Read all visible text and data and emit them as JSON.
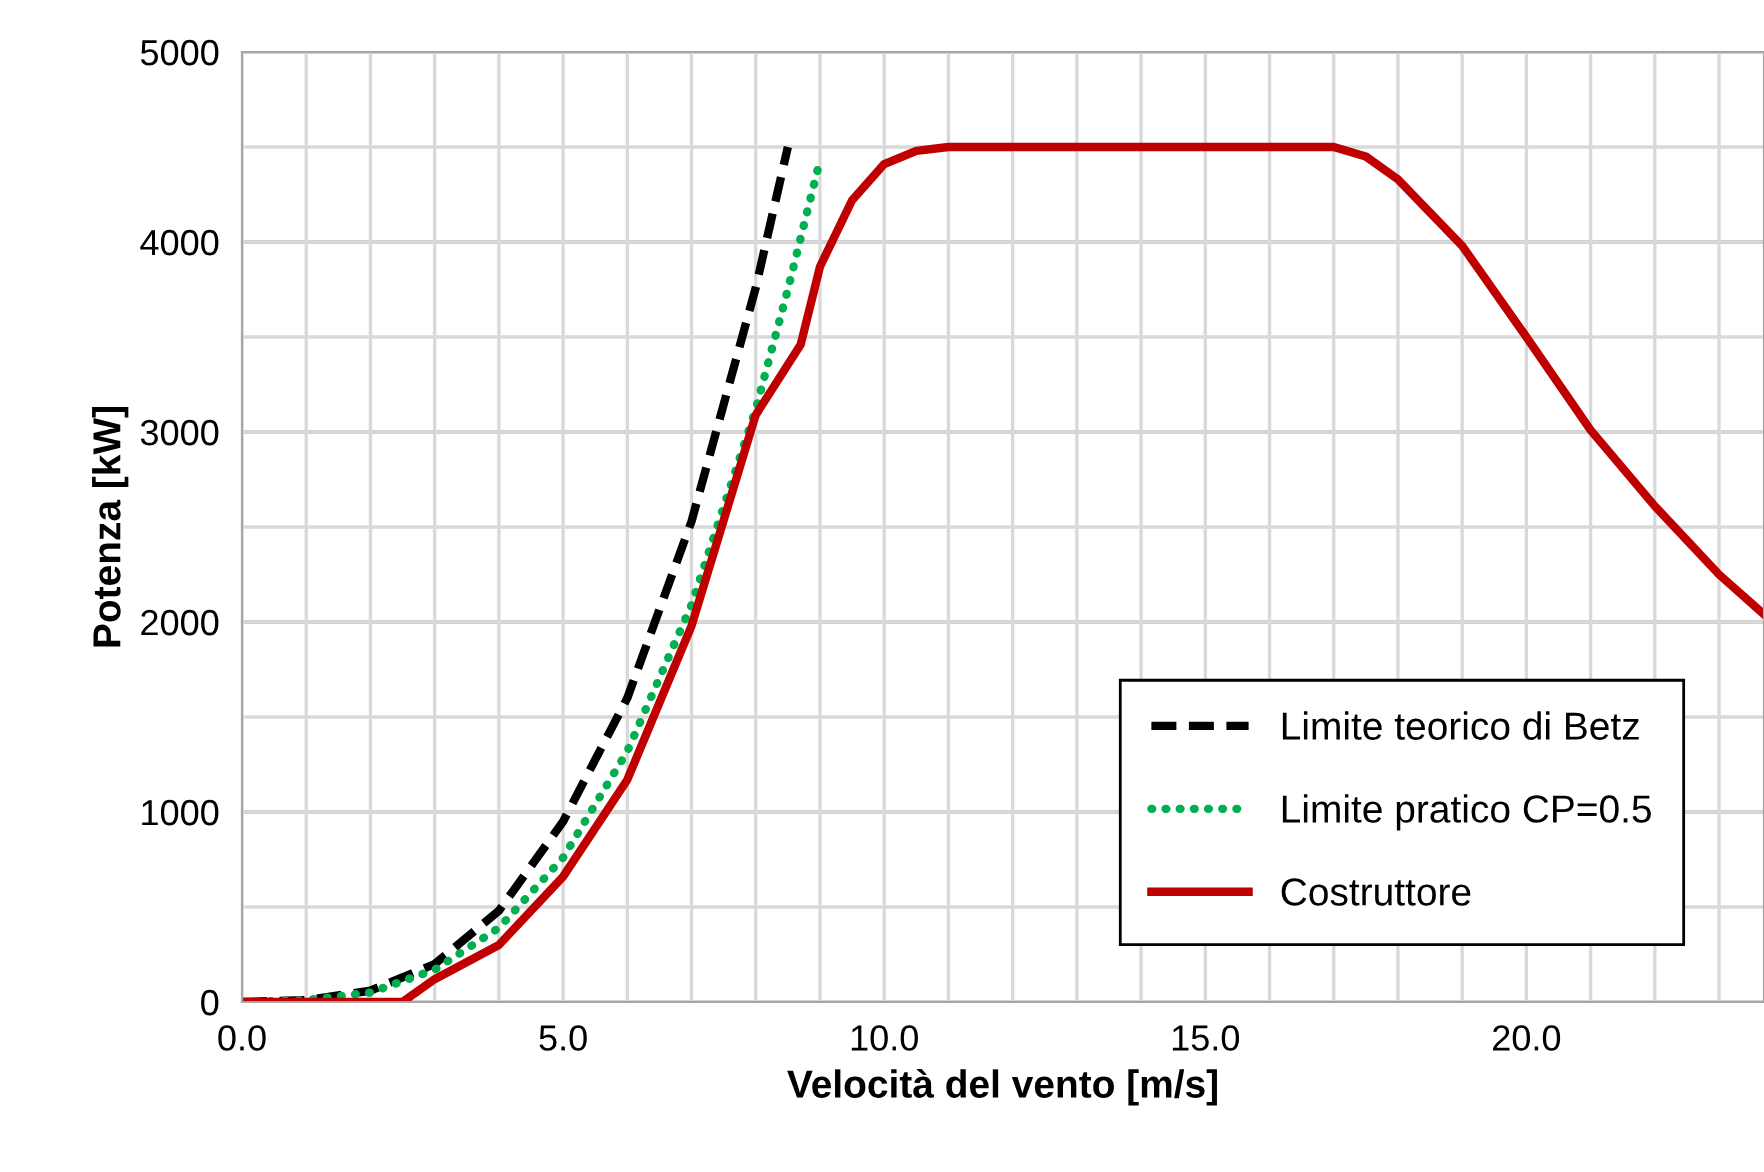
{
  "chart_data": {
    "type": "line",
    "xlabel": "Velocità del vento [m/s]",
    "ylabel": "Potenza [kW]",
    "xlim": [
      0,
      23.7
    ],
    "ylim": [
      0,
      5000
    ],
    "xticks": [
      {
        "value": 0,
        "label": "0.0"
      },
      {
        "value": 1,
        "label": null
      },
      {
        "value": 2,
        "label": null
      },
      {
        "value": 3,
        "label": null
      },
      {
        "value": 4,
        "label": null
      },
      {
        "value": 5,
        "label": "5.0"
      },
      {
        "value": 6,
        "label": null
      },
      {
        "value": 7,
        "label": null
      },
      {
        "value": 8,
        "label": null
      },
      {
        "value": 9,
        "label": null
      },
      {
        "value": 10,
        "label": "10.0"
      },
      {
        "value": 11,
        "label": null
      },
      {
        "value": 12,
        "label": null
      },
      {
        "value": 13,
        "label": null
      },
      {
        "value": 14,
        "label": null
      },
      {
        "value": 15,
        "label": "15.0"
      },
      {
        "value": 16,
        "label": null
      },
      {
        "value": 17,
        "label": null
      },
      {
        "value": 18,
        "label": null
      },
      {
        "value": 19,
        "label": null
      },
      {
        "value": 20,
        "label": "20.0"
      },
      {
        "value": 21,
        "label": null
      },
      {
        "value": 22,
        "label": null
      },
      {
        "value": 23,
        "label": null
      }
    ],
    "yticks": [
      0,
      {
        "value": 500,
        "label": null
      },
      1000,
      {
        "value": 1500,
        "label": null
      },
      2000,
      {
        "value": 2500,
        "label": null
      },
      3000,
      {
        "value": 3500,
        "label": null
      },
      4000,
      {
        "value": 4500,
        "label": null
      },
      5000
    ],
    "grid": true,
    "legend": "bottom right",
    "series": [
      {
        "name": "Limite teorico di Betz",
        "color": "#000000",
        "line_style": "dashed",
        "x": [
          0,
          1,
          2,
          3,
          4,
          5,
          6,
          7,
          8,
          8.5
        ],
        "values": [
          0,
          10,
          60,
          200,
          480,
          950,
          1600,
          2530,
          3760,
          4500
        ]
      },
      {
        "name": "Limite pratico CP=0.5",
        "color": "#00b050",
        "line_style": "dotted",
        "x": [
          0,
          1,
          2,
          3,
          4,
          5,
          6,
          7,
          8,
          8.5,
          9
        ],
        "values": [
          0,
          10,
          50,
          170,
          390,
          760,
          1320,
          2090,
          3120,
          3750,
          4430
        ]
      },
      {
        "name": "Costruttore",
        "color": "#c00000",
        "line_style": "solid",
        "x": [
          0,
          1,
          2,
          2.5,
          3,
          4,
          5,
          6,
          7,
          8,
          8.7,
          9,
          9.5,
          10,
          10.5,
          11,
          12,
          13,
          14,
          15,
          16,
          17,
          17.5,
          18,
          19,
          20,
          21,
          22,
          23,
          23.7
        ],
        "values": [
          0,
          0,
          0,
          0,
          120,
          300,
          660,
          1170,
          1980,
          3090,
          3460,
          3870,
          4220,
          4410,
          4480,
          4500,
          4500,
          4500,
          4500,
          4500,
          4500,
          4500,
          4450,
          4330,
          3980,
          3500,
          3010,
          2610,
          2250,
          2040
        ]
      }
    ]
  }
}
